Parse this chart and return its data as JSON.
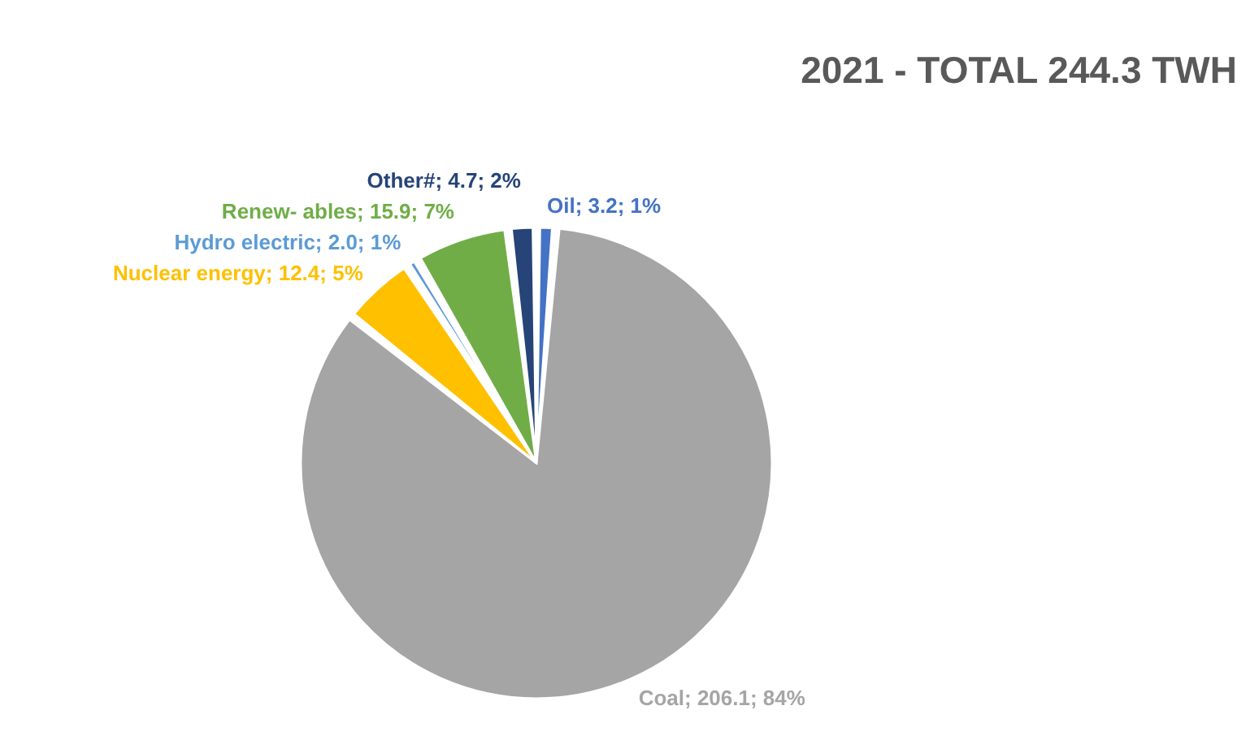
{
  "chart_data": {
    "type": "pie",
    "title": "2021 - TOTAL 244.3 TWH",
    "categories": [
      "Oil",
      "Coal",
      "Nuclear energy",
      "Hydro electric",
      "Renew- ables",
      "Other#"
    ],
    "values": [
      3.2,
      206.1,
      12.4,
      2.0,
      15.9,
      4.7
    ],
    "value_labels": [
      "3.2; 1%",
      "206.1; 84%",
      "12.4; 5%",
      "2.0; 1%",
      "15.9; 7%",
      "4.7; 2%"
    ],
    "colors": [
      "#4472c4",
      "#a5a5a5",
      "#ffc000",
      "#5b9bd5",
      "#70ad47",
      "#264478"
    ]
  }
}
